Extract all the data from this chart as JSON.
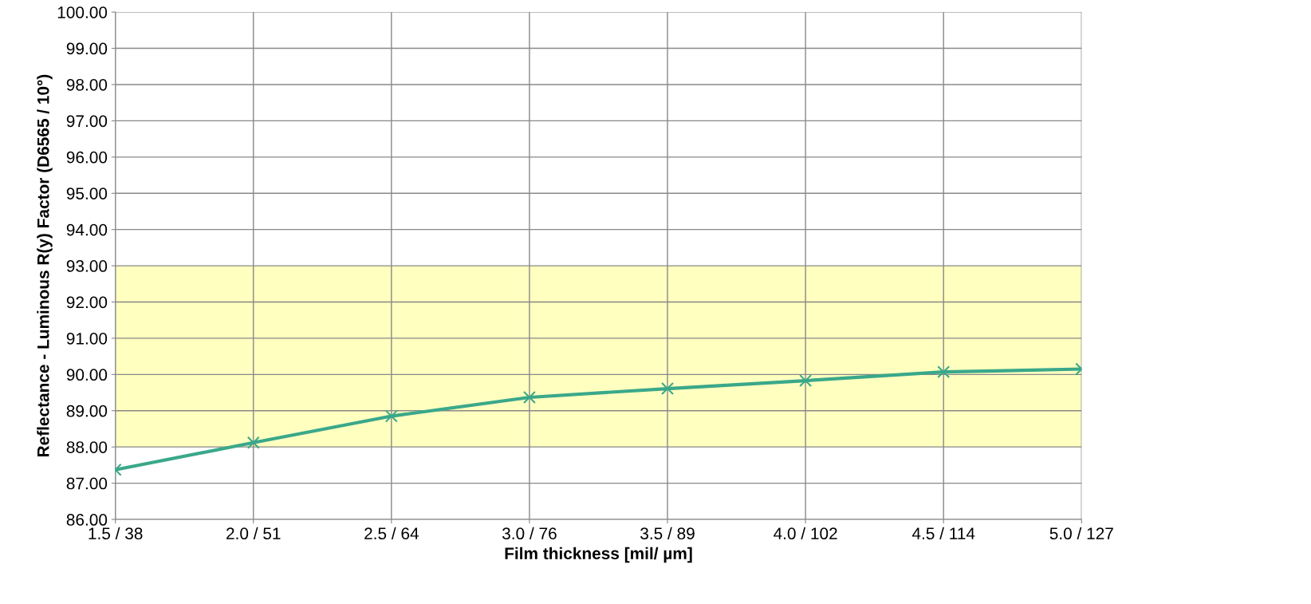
{
  "chart_data": {
    "type": "line",
    "xlabel": "Film thickness [mil/ µm]",
    "ylabel": "Reflectance - Luminous R(y) Factor (D6565 / 10°)",
    "categories": [
      "1.5 / 38",
      "2.0 / 51",
      "2.5 / 64",
      "3.0 / 76",
      "3.5 / 89",
      "4.0 / 102",
      "4.5 / 114",
      "5.0 / 127"
    ],
    "series": [
      {
        "color": "#3aa88a",
        "values": [
          87.37,
          88.12,
          88.85,
          89.37,
          89.61,
          89.83,
          90.07,
          90.15
        ]
      }
    ],
    "ylim": [
      86,
      100
    ],
    "yticks": [
      {
        "value": 86,
        "label": "86.00"
      },
      {
        "value": 87,
        "label": "87.00"
      },
      {
        "value": 88,
        "label": "88.00"
      },
      {
        "value": 89,
        "label": "89.00"
      },
      {
        "value": 90,
        "label": "90.00"
      },
      {
        "value": 91,
        "label": "91.00"
      },
      {
        "value": 92,
        "label": "92.00"
      },
      {
        "value": 93,
        "label": "93.00"
      },
      {
        "value": 94,
        "label": "94.00"
      },
      {
        "value": 95,
        "label": "95.00"
      },
      {
        "value": 96,
        "label": "96.00"
      },
      {
        "value": 97,
        "label": "97.00"
      },
      {
        "value": 98,
        "label": "98.00"
      },
      {
        "value": 99,
        "label": "99.00"
      },
      {
        "value": 100,
        "label": "100.00"
      }
    ],
    "bands": [
      {
        "axis": "y",
        "from": 88,
        "to": 93,
        "color": "#ffffc0"
      }
    ],
    "grid": true,
    "marker": "cross",
    "line_style": "solid"
  }
}
